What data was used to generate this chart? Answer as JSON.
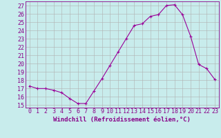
{
  "x": [
    0,
    1,
    2,
    3,
    4,
    5,
    6,
    7,
    8,
    9,
    10,
    11,
    12,
    13,
    14,
    15,
    16,
    17,
    18,
    19,
    20,
    21,
    22,
    23
  ],
  "y": [
    17.3,
    17.0,
    17.0,
    16.8,
    16.5,
    15.8,
    15.2,
    15.2,
    16.7,
    18.2,
    19.8,
    21.4,
    23.0,
    24.6,
    24.8,
    25.7,
    25.9,
    27.0,
    27.1,
    25.9,
    23.3,
    19.9,
    19.4,
    18.1
  ],
  "line_color": "#990099",
  "marker": "+",
  "marker_size": 3,
  "bg_color": "#c8ecec",
  "grid_color": "#b0b0b0",
  "xlabel": "Windchill (Refroidissement éolien,°C)",
  "ylabel_ticks": [
    15,
    16,
    17,
    18,
    19,
    20,
    21,
    22,
    23,
    24,
    25,
    26,
    27
  ],
  "xlim": [
    -0.5,
    23.5
  ],
  "ylim": [
    14.7,
    27.5
  ],
  "xlabel_fontsize": 6.5,
  "tick_fontsize": 6,
  "label_color": "#880088"
}
